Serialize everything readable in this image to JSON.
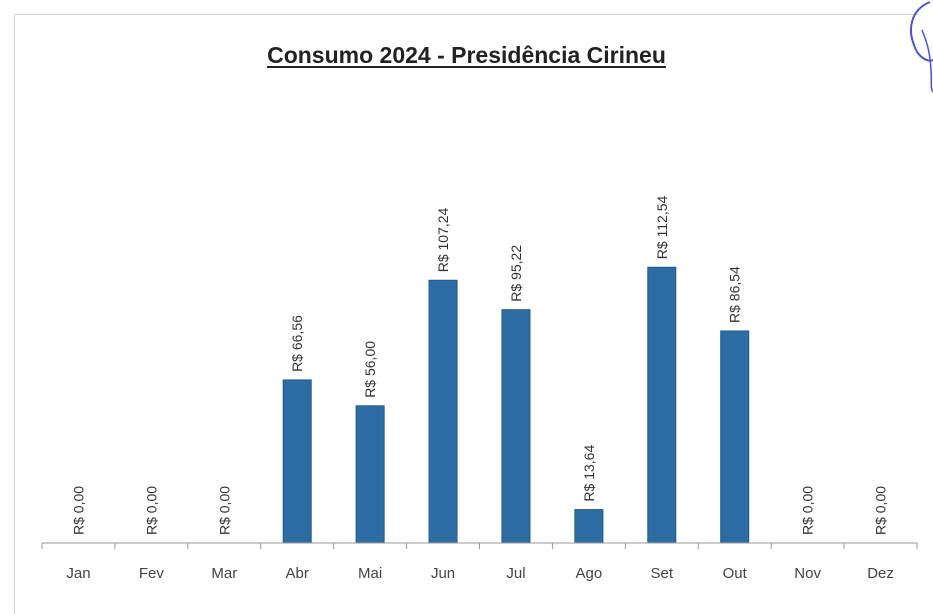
{
  "chart_data": {
    "type": "bar",
    "title": "Consumo 2024 - Presidência Cirineu",
    "xlabel": "",
    "ylabel": "",
    "categories": [
      "Jan",
      "Fev",
      "Mar",
      "Abr",
      "Mai",
      "Jun",
      "Jul",
      "Ago",
      "Set",
      "Out",
      "Nov",
      "Dez"
    ],
    "values": [
      0.0,
      0.0,
      0.0,
      66.56,
      56.0,
      107.24,
      95.22,
      13.64,
      112.54,
      86.54,
      0.0,
      0.0
    ],
    "data_labels": [
      "R$ 0,00",
      "R$ 0,00",
      "R$ 0,00",
      "R$ 66,56",
      "R$ 56,00",
      "R$ 107,24",
      "R$ 95,22",
      "R$ 13,64",
      "R$ 112,54",
      "R$ 86,54",
      "R$ 0,00",
      "R$ 0,00"
    ],
    "ylim": [
      0,
      150
    ],
    "grid": false,
    "legend": "none",
    "bar_color": "#2e6da4",
    "bar_edge_color": "#1f5a8e"
  }
}
